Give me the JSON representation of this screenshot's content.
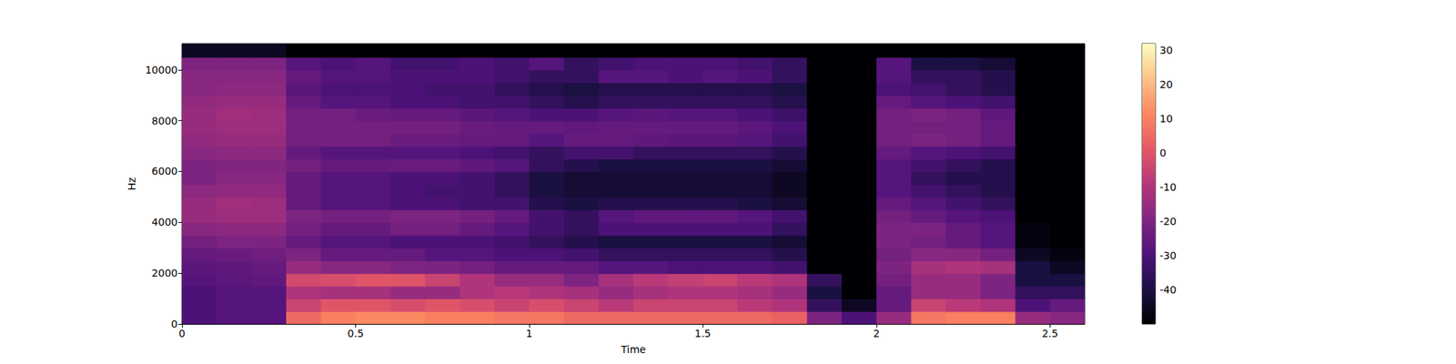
{
  "chart_data": {
    "type": "heatmap",
    "x_label": "Time",
    "y_label": "Hz",
    "xlim": [
      0,
      2.6
    ],
    "ylim": [
      0,
      11025
    ],
    "xticks": [
      0,
      0.5,
      1,
      1.5,
      2,
      2.5
    ],
    "yticks": [
      0,
      2000,
      4000,
      6000,
      8000,
      10000
    ],
    "time_edges": [
      0,
      0.1,
      0.2,
      0.3,
      0.4,
      0.5,
      0.6,
      0.7,
      0.8,
      0.9,
      1.0,
      1.1,
      1.2,
      1.3,
      1.4,
      1.5,
      1.6,
      1.7,
      1.8,
      1.9,
      2.0,
      2.1,
      2.2,
      2.3,
      2.4,
      2.5,
      2.6
    ],
    "freq_edges": [
      0,
      500,
      1000,
      1500,
      2000,
      2500,
      3000,
      3500,
      4000,
      4500,
      5000,
      5500,
      6000,
      6500,
      7000,
      7500,
      8000,
      8500,
      9000,
      9500,
      10000,
      10500,
      11025
    ],
    "values": [
      [
        -30,
        -28,
        -28,
        5,
        10,
        12,
        12,
        10,
        10,
        8,
        8,
        5,
        5,
        5,
        5,
        5,
        5,
        3,
        -20,
        -30,
        -15,
        8,
        10,
        10,
        -15,
        -18
      ],
      [
        -30,
        -28,
        -28,
        -5,
        0,
        0,
        -2,
        0,
        -2,
        -5,
        -2,
        -5,
        -8,
        -5,
        -5,
        -5,
        -8,
        -10,
        -35,
        -45,
        -25,
        -5,
        -8,
        -10,
        -30,
        -25
      ],
      [
        -30,
        -28,
        -28,
        -10,
        -12,
        -12,
        -15,
        -15,
        -10,
        -8,
        -10,
        -12,
        -15,
        -12,
        -10,
        -10,
        -12,
        -15,
        -40,
        -50,
        -25,
        -15,
        -15,
        -20,
        -35,
        -35
      ],
      [
        -28,
        -27,
        -26,
        -3,
        -2,
        0,
        0,
        -5,
        -10,
        -15,
        -15,
        -20,
        -12,
        -8,
        -6,
        -5,
        -8,
        -10,
        -35,
        -50,
        -22,
        -15,
        -15,
        -20,
        -40,
        -40
      ],
      [
        -27,
        -26,
        -25,
        -15,
        -18,
        -18,
        -20,
        -20,
        -22,
        -25,
        -25,
        -25,
        -28,
        -28,
        -30,
        -30,
        -30,
        -32,
        -50,
        -50,
        -20,
        -12,
        -10,
        -12,
        -40,
        -45
      ],
      [
        -25,
        -24,
        -23,
        -20,
        -25,
        -25,
        -25,
        -28,
        -28,
        -30,
        -30,
        -32,
        -35,
        -35,
        -35,
        -35,
        -35,
        -38,
        -50,
        -50,
        -22,
        -18,
        -18,
        -22,
        -45,
        -48
      ],
      [
        -22,
        -20,
        -20,
        -25,
        -28,
        -28,
        -30,
        -30,
        -30,
        -32,
        -35,
        -38,
        -40,
        -40,
        -40,
        -40,
        -40,
        -42,
        -50,
        -50,
        -20,
        -22,
        -25,
        -28,
        -48,
        -50
      ],
      [
        -18,
        -17,
        -17,
        -22,
        -25,
        -25,
        -22,
        -22,
        -25,
        -28,
        -32,
        -35,
        -30,
        -30,
        -30,
        -30,
        -30,
        -35,
        -50,
        -50,
        -20,
        -20,
        -25,
        -28,
        -48,
        -50
      ],
      [
        -15,
        -14,
        -14,
        -20,
        -22,
        -22,
        -20,
        -20,
        -22,
        -25,
        -32,
        -35,
        -28,
        -26,
        -26,
        -26,
        -28,
        -32,
        -50,
        -50,
        -22,
        -25,
        -28,
        -30,
        -50,
        -50
      ],
      [
        -15,
        -13,
        -14,
        -25,
        -28,
        -28,
        -30,
        -30,
        -32,
        -32,
        -38,
        -40,
        -38,
        -38,
        -38,
        -38,
        -40,
        -42,
        -50,
        -50,
        -25,
        -28,
        -32,
        -35,
        -50,
        -50
      ],
      [
        -17,
        -16,
        -16,
        -25,
        -28,
        -28,
        -30,
        -32,
        -32,
        -35,
        -40,
        -42,
        -42,
        -42,
        -42,
        -42,
        -42,
        -45,
        -50,
        -50,
        -28,
        -32,
        -35,
        -38,
        -50,
        -50
      ],
      [
        -20,
        -18,
        -18,
        -25,
        -28,
        -28,
        -30,
        -30,
        -32,
        -35,
        -40,
        -42,
        -42,
        -42,
        -42,
        -42,
        -42,
        -45,
        -50,
        -50,
        -28,
        -35,
        -38,
        -38,
        -50,
        -50
      ],
      [
        -20,
        -19,
        -19,
        -22,
        -25,
        -25,
        -24,
        -24,
        -26,
        -28,
        -35,
        -38,
        -40,
        -40,
        -40,
        -40,
        -40,
        -42,
        -50,
        -50,
        -28,
        -32,
        -35,
        -38,
        -50,
        -50
      ],
      [
        -18,
        -17,
        -17,
        -25,
        -28,
        -28,
        -28,
        -28,
        -30,
        -32,
        -35,
        -32,
        -32,
        -35,
        -35,
        -35,
        -35,
        -38,
        -50,
        -50,
        -25,
        -28,
        -30,
        -32,
        -50,
        -50
      ],
      [
        -16,
        -15,
        -15,
        -22,
        -22,
        -22,
        -24,
        -24,
        -25,
        -25,
        -28,
        -25,
        -25,
        -26,
        -27,
        -27,
        -28,
        -32,
        -50,
        -50,
        -22,
        -20,
        -22,
        -25,
        -50,
        -50
      ],
      [
        -15,
        -14,
        -14,
        -22,
        -22,
        -22,
        -22,
        -22,
        -24,
        -25,
        -25,
        -26,
        -25,
        -25,
        -25,
        -25,
        -27,
        -30,
        -50,
        -50,
        -22,
        -22,
        -22,
        -25,
        -50,
        -50
      ],
      [
        -15,
        -13,
        -14,
        -22,
        -22,
        -24,
        -25,
        -25,
        -27,
        -28,
        -30,
        -30,
        -28,
        -27,
        -28,
        -28,
        -30,
        -33,
        -50,
        -50,
        -22,
        -20,
        -22,
        -26,
        -50,
        -50
      ],
      [
        -16,
        -15,
        -15,
        -25,
        -28,
        -28,
        -30,
        -30,
        -32,
        -32,
        -35,
        -38,
        -35,
        -35,
        -35,
        -35,
        -35,
        -38,
        -50,
        -50,
        -25,
        -28,
        -30,
        -32,
        -50,
        -50
      ],
      [
        -18,
        -17,
        -17,
        -27,
        -30,
        -30,
        -30,
        -32,
        -32,
        -35,
        -38,
        -40,
        -38,
        -38,
        -38,
        -38,
        -38,
        -40,
        -50,
        -50,
        -30,
        -32,
        -35,
        -38,
        -50,
        -50
      ],
      [
        -18,
        -18,
        -18,
        -25,
        -28,
        -28,
        -30,
        -30,
        -30,
        -32,
        -35,
        -35,
        -28,
        -28,
        -30,
        -28,
        -30,
        -35,
        -50,
        -50,
        -28,
        -35,
        -35,
        -38,
        -50,
        -50
      ],
      [
        -20,
        -20,
        -20,
        -28,
        -30,
        -28,
        -32,
        -32,
        -30,
        -32,
        -28,
        -35,
        -32,
        -30,
        -30,
        -30,
        -32,
        -35,
        -50,
        -50,
        -28,
        -40,
        -40,
        -42,
        -50,
        -50
      ],
      [
        -45,
        -45,
        -45,
        -50,
        -50,
        -50,
        -50,
        -50,
        -50,
        -50,
        -50,
        -50,
        -50,
        -50,
        -50,
        -50,
        -50,
        -50,
        -50,
        -50,
        -50,
        -50,
        -50,
        -50,
        -50,
        -50
      ]
    ],
    "colorbar": {
      "range": [
        -50,
        32
      ],
      "ticks": [
        -40,
        -30,
        -20,
        -10,
        0,
        10,
        20,
        30
      ]
    }
  }
}
